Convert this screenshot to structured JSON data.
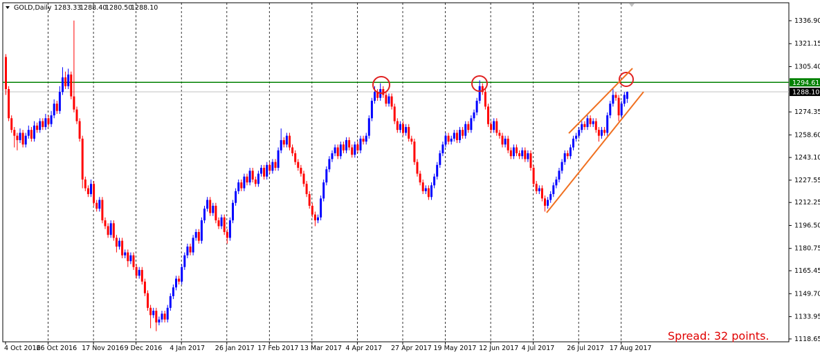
{
  "chart_data": {
    "type": "candlestick",
    "symbol": "GOLD,Daily",
    "last_ohlc_labels": [
      "1283.33",
      "1288.40",
      "1280.50",
      "1288.10"
    ],
    "up_color": "#0000ff",
    "down_color": "#ff0000",
    "ylim": [
      1116.7,
      1349.2
    ],
    "yticks": [
      {
        "value": 1336.9,
        "label": "1336.90"
      },
      1321.15,
      {
        "value": 1305.4,
        "label": "1305.40"
      },
      1274.35,
      {
        "value": 1258.6,
        "label": "1258.60"
      },
      {
        "value": 1243.1,
        "label": "1243.10"
      },
      1227.55,
      1212.25,
      {
        "value": 1196.5,
        "label": "1196.50"
      },
      1180.75,
      1165.45,
      {
        "value": 1149.7,
        "label": "1149.70"
      },
      1133.95,
      1118.65
    ],
    "xticks": [
      {
        "value": 0,
        "label": "4 Oct 2016"
      },
      {
        "value": 15,
        "label": "26 Oct 2016"
      },
      {
        "value": 31,
        "label": "17 Nov 2016"
      },
      {
        "value": 46,
        "label": "9 Dec 2016"
      },
      {
        "value": 62,
        "label": "4 Jan 2017"
      },
      {
        "value": 78,
        "label": "26 Jan 2017"
      },
      {
        "value": 93,
        "label": "17 Feb 2017"
      },
      {
        "value": 108,
        "label": "13 Mar 2017"
      },
      {
        "value": 124,
        "label": "4 Apr 2017"
      },
      {
        "value": 140,
        "label": "27 Apr 2017"
      },
      {
        "value": 155,
        "label": "19 May 2017"
      },
      {
        "value": 171,
        "label": "12 Jun 2017"
      },
      {
        "value": 186,
        "label": "4 Jul 2017"
      },
      {
        "value": 202,
        "label": "26 Jul 2017"
      },
      {
        "value": 217,
        "label": "17 Aug 2017"
      }
    ],
    "levels": [
      {
        "value": 1294.61,
        "label": "1294.61",
        "color": "#008000"
      },
      {
        "value": 1288.1,
        "label": "1288.10",
        "color": "#000000"
      }
    ],
    "annotation": "Spread: 32 points.",
    "candles": [
      [
        1312,
        1314,
        1286,
        1290
      ],
      [
        1290,
        1292,
        1268,
        1270
      ],
      [
        1270,
        1272,
        1260,
        1262
      ],
      [
        1262,
        1264,
        1250,
        1258
      ],
      [
        1258,
        1260,
        1248,
        1255
      ],
      [
        1255,
        1263,
        1253,
        1260
      ],
      [
        1260,
        1262,
        1250,
        1252
      ],
      [
        1252,
        1260,
        1250,
        1258
      ],
      [
        1258,
        1265,
        1256,
        1262
      ],
      [
        1262,
        1264,
        1254,
        1256
      ],
      [
        1256,
        1268,
        1254,
        1265
      ],
      [
        1265,
        1267,
        1260,
        1262
      ],
      [
        1262,
        1270,
        1260,
        1268
      ],
      [
        1268,
        1270,
        1262,
        1264
      ],
      [
        1264,
        1273,
        1262,
        1270
      ],
      [
        1270,
        1272,
        1264,
        1266
      ],
      [
        1266,
        1275,
        1264,
        1272
      ],
      [
        1272,
        1283,
        1270,
        1280
      ],
      [
        1280,
        1282,
        1273,
        1275
      ],
      [
        1275,
        1292,
        1273,
        1288
      ],
      [
        1288,
        1305,
        1286,
        1298
      ],
      [
        1298,
        1302,
        1290,
        1292
      ],
      [
        1292,
        1304,
        1290,
        1300
      ],
      [
        1300,
        1302,
        1283,
        1285
      ],
      [
        1285,
        1337,
        1274,
        1276
      ],
      [
        1276,
        1278,
        1266,
        1268
      ],
      [
        1268,
        1270,
        1254,
        1256
      ],
      [
        1256,
        1258,
        1222,
        1228
      ],
      [
        1228,
        1230,
        1220,
        1222
      ],
      [
        1222,
        1224,
        1216,
        1218
      ],
      [
        1218,
        1228,
        1216,
        1225
      ],
      [
        1225,
        1227,
        1210,
        1212
      ],
      [
        1212,
        1214,
        1206,
        1208
      ],
      [
        1208,
        1216,
        1206,
        1214
      ],
      [
        1214,
        1216,
        1198,
        1200
      ],
      [
        1200,
        1202,
        1194,
        1196
      ],
      [
        1196,
        1198,
        1188,
        1190
      ],
      [
        1190,
        1200,
        1188,
        1198
      ],
      [
        1198,
        1200,
        1186,
        1188
      ],
      [
        1188,
        1190,
        1178,
        1182
      ],
      [
        1182,
        1188,
        1180,
        1186
      ],
      [
        1186,
        1188,
        1174,
        1176
      ],
      [
        1176,
        1180,
        1174,
        1178
      ],
      [
        1178,
        1180,
        1168,
        1172
      ],
      [
        1172,
        1178,
        1170,
        1176
      ],
      [
        1176,
        1178,
        1166,
        1168
      ],
      [
        1168,
        1170,
        1160,
        1162
      ],
      [
        1162,
        1168,
        1160,
        1166
      ],
      [
        1166,
        1168,
        1156,
        1158
      ],
      [
        1158,
        1160,
        1148,
        1150
      ],
      [
        1150,
        1152,
        1138,
        1140
      ],
      [
        1140,
        1142,
        1126,
        1135
      ],
      [
        1135,
        1140,
        1133,
        1138
      ],
      [
        1138,
        1140,
        1124,
        1130
      ],
      [
        1130,
        1134,
        1128,
        1132
      ],
      [
        1132,
        1138,
        1130,
        1136
      ],
      [
        1136,
        1138,
        1130,
        1132
      ],
      [
        1132,
        1142,
        1130,
        1140
      ],
      [
        1140,
        1150,
        1138,
        1148
      ],
      [
        1148,
        1156,
        1146,
        1154
      ],
      [
        1154,
        1162,
        1152,
        1160
      ],
      [
        1160,
        1162,
        1156,
        1158
      ],
      [
        1158,
        1170,
        1156,
        1168
      ],
      [
        1168,
        1178,
        1166,
        1176
      ],
      [
        1176,
        1184,
        1174,
        1182
      ],
      [
        1182,
        1184,
        1176,
        1178
      ],
      [
        1178,
        1190,
        1176,
        1188
      ],
      [
        1188,
        1194,
        1186,
        1192
      ],
      [
        1192,
        1194,
        1184,
        1186
      ],
      [
        1186,
        1202,
        1184,
        1200
      ],
      [
        1200,
        1210,
        1198,
        1208
      ],
      [
        1208,
        1216,
        1206,
        1214
      ],
      [
        1214,
        1216,
        1203,
        1205
      ],
      [
        1205,
        1212,
        1203,
        1210
      ],
      [
        1210,
        1212,
        1198,
        1200
      ],
      [
        1200,
        1202,
        1194,
        1196
      ],
      [
        1196,
        1204,
        1194,
        1202
      ],
      [
        1202,
        1204,
        1190,
        1192
      ],
      [
        1192,
        1194,
        1184,
        1188
      ],
      [
        1188,
        1202,
        1186,
        1200
      ],
      [
        1200,
        1214,
        1198,
        1212
      ],
      [
        1212,
        1222,
        1210,
        1220
      ],
      [
        1220,
        1228,
        1218,
        1226
      ],
      [
        1226,
        1228,
        1220,
        1222
      ],
      [
        1222,
        1232,
        1220,
        1230
      ],
      [
        1230,
        1232,
        1224,
        1226
      ],
      [
        1226,
        1236,
        1224,
        1234
      ],
      [
        1234,
        1236,
        1226,
        1228
      ],
      [
        1228,
        1230,
        1223,
        1225
      ],
      [
        1225,
        1234,
        1223,
        1232
      ],
      [
        1232,
        1238,
        1230,
        1236
      ],
      [
        1236,
        1238,
        1228,
        1230
      ],
      [
        1230,
        1240,
        1228,
        1238
      ],
      [
        1238,
        1240,
        1232,
        1234
      ],
      [
        1234,
        1242,
        1232,
        1240
      ],
      [
        1240,
        1242,
        1234,
        1236
      ],
      [
        1236,
        1250,
        1234,
        1248
      ],
      [
        1248,
        1263,
        1246,
        1255
      ],
      [
        1255,
        1257,
        1250,
        1252
      ],
      [
        1252,
        1260,
        1250,
        1258
      ],
      [
        1258,
        1260,
        1248,
        1250
      ],
      [
        1250,
        1252,
        1244,
        1246
      ],
      [
        1246,
        1248,
        1238,
        1240
      ],
      [
        1240,
        1242,
        1234,
        1236
      ],
      [
        1236,
        1238,
        1230,
        1232
      ],
      [
        1232,
        1234,
        1223,
        1225
      ],
      [
        1225,
        1227,
        1216,
        1218
      ],
      [
        1218,
        1220,
        1208,
        1210
      ],
      [
        1210,
        1212,
        1202,
        1204
      ],
      [
        1204,
        1206,
        1196,
        1200
      ],
      [
        1200,
        1204,
        1198,
        1202
      ],
      [
        1202,
        1217,
        1200,
        1215
      ],
      [
        1215,
        1228,
        1213,
        1226
      ],
      [
        1226,
        1237,
        1224,
        1235
      ],
      [
        1235,
        1244,
        1233,
        1242
      ],
      [
        1242,
        1248,
        1240,
        1246
      ],
      [
        1246,
        1252,
        1244,
        1250
      ],
      [
        1250,
        1252,
        1242,
        1244
      ],
      [
        1244,
        1254,
        1242,
        1252
      ],
      [
        1252,
        1254,
        1246,
        1248
      ],
      [
        1248,
        1257,
        1246,
        1255
      ],
      [
        1255,
        1257,
        1248,
        1250
      ],
      [
        1250,
        1252,
        1243,
        1245
      ],
      [
        1245,
        1254,
        1243,
        1252
      ],
      [
        1252,
        1254,
        1246,
        1248
      ],
      [
        1248,
        1258,
        1246,
        1256
      ],
      [
        1256,
        1258,
        1252,
        1254
      ],
      [
        1254,
        1260,
        1252,
        1258
      ],
      [
        1258,
        1272,
        1256,
        1270
      ],
      [
        1270,
        1284,
        1268,
        1282
      ],
      [
        1282,
        1292,
        1280,
        1288
      ],
      [
        1288,
        1290,
        1282,
        1284
      ],
      [
        1284,
        1294,
        1282,
        1290
      ],
      [
        1290,
        1292,
        1284,
        1286
      ],
      [
        1286,
        1288,
        1278,
        1280
      ],
      [
        1280,
        1287,
        1278,
        1285
      ],
      [
        1285,
        1287,
        1276,
        1278
      ],
      [
        1278,
        1280,
        1266,
        1268
      ],
      [
        1268,
        1270,
        1260,
        1262
      ],
      [
        1262,
        1268,
        1260,
        1266
      ],
      [
        1266,
        1268,
        1258,
        1260
      ],
      [
        1260,
        1266,
        1258,
        1264
      ],
      [
        1264,
        1266,
        1254,
        1256
      ],
      [
        1256,
        1258,
        1252,
        1254
      ],
      [
        1254,
        1256,
        1238,
        1240
      ],
      [
        1240,
        1242,
        1230,
        1232
      ],
      [
        1232,
        1234,
        1224,
        1226
      ],
      [
        1226,
        1228,
        1218,
        1220
      ],
      [
        1220,
        1224,
        1218,
        1222
      ],
      [
        1222,
        1224,
        1214,
        1216
      ],
      [
        1216,
        1226,
        1214,
        1224
      ],
      [
        1224,
        1232,
        1222,
        1230
      ],
      [
        1230,
        1240,
        1228,
        1238
      ],
      [
        1238,
        1248,
        1236,
        1246
      ],
      [
        1246,
        1254,
        1244,
        1252
      ],
      [
        1252,
        1260,
        1250,
        1258
      ],
      [
        1258,
        1260,
        1252,
        1254
      ],
      [
        1254,
        1258,
        1252,
        1256
      ],
      [
        1256,
        1262,
        1254,
        1260
      ],
      [
        1260,
        1262,
        1253,
        1255
      ],
      [
        1255,
        1264,
        1253,
        1262
      ],
      [
        1262,
        1264,
        1256,
        1258
      ],
      [
        1258,
        1268,
        1256,
        1266
      ],
      [
        1266,
        1268,
        1260,
        1262
      ],
      [
        1262,
        1272,
        1260,
        1270
      ],
      [
        1270,
        1276,
        1268,
        1274
      ],
      [
        1274,
        1284,
        1272,
        1282
      ],
      [
        1282,
        1296,
        1280,
        1292
      ],
      [
        1292,
        1294,
        1286,
        1288
      ],
      [
        1288,
        1290,
        1276,
        1278
      ],
      [
        1278,
        1280,
        1264,
        1266
      ],
      [
        1266,
        1268,
        1260,
        1262
      ],
      [
        1262,
        1270,
        1260,
        1268
      ],
      [
        1268,
        1270,
        1258,
        1260
      ],
      [
        1260,
        1262,
        1256,
        1258
      ],
      [
        1258,
        1260,
        1250,
        1252
      ],
      [
        1252,
        1258,
        1250,
        1256
      ],
      [
        1256,
        1258,
        1246,
        1248
      ],
      [
        1248,
        1250,
        1242,
        1244
      ],
      [
        1244,
        1252,
        1242,
        1250
      ],
      [
        1250,
        1252,
        1244,
        1246
      ],
      [
        1246,
        1248,
        1242,
        1244
      ],
      [
        1244,
        1250,
        1242,
        1248
      ],
      [
        1248,
        1250,
        1240,
        1242
      ],
      [
        1242,
        1248,
        1240,
        1246
      ],
      [
        1246,
        1248,
        1234,
        1236
      ],
      [
        1236,
        1238,
        1223,
        1225
      ],
      [
        1225,
        1227,
        1218,
        1220
      ],
      [
        1220,
        1224,
        1218,
        1222
      ],
      [
        1222,
        1224,
        1213,
        1215
      ],
      [
        1215,
        1217,
        1206,
        1210
      ],
      [
        1210,
        1216,
        1208,
        1214
      ],
      [
        1214,
        1220,
        1212,
        1218
      ],
      [
        1218,
        1226,
        1216,
        1224
      ],
      [
        1224,
        1230,
        1222,
        1228
      ],
      [
        1228,
        1236,
        1226,
        1234
      ],
      [
        1234,
        1242,
        1232,
        1240
      ],
      [
        1240,
        1248,
        1238,
        1246
      ],
      [
        1246,
        1248,
        1242,
        1244
      ],
      [
        1244,
        1252,
        1242,
        1250
      ],
      [
        1250,
        1258,
        1248,
        1256
      ],
      [
        1256,
        1260,
        1254,
        1258
      ],
      [
        1258,
        1264,
        1256,
        1262
      ],
      [
        1262,
        1268,
        1260,
        1266
      ],
      [
        1266,
        1268,
        1262,
        1264
      ],
      [
        1264,
        1272,
        1262,
        1270
      ],
      [
        1270,
        1272,
        1264,
        1266
      ],
      [
        1266,
        1270,
        1264,
        1268
      ],
      [
        1268,
        1270,
        1260,
        1262
      ],
      [
        1262,
        1264,
        1254,
        1258
      ],
      [
        1258,
        1264,
        1256,
        1262
      ],
      [
        1262,
        1264,
        1258,
        1260
      ],
      [
        1260,
        1274,
        1258,
        1272
      ],
      [
        1272,
        1282,
        1270,
        1280
      ],
      [
        1280,
        1290,
        1278,
        1286
      ],
      [
        1286,
        1288,
        1282,
        1284
      ],
      [
        1284,
        1286,
        1268,
        1272
      ],
      [
        1272,
        1282,
        1270,
        1280
      ],
      [
        1280,
        1288,
        1278,
        1286
      ],
      [
        1283.33,
        1288.4,
        1280.5,
        1288.1
      ]
    ]
  }
}
